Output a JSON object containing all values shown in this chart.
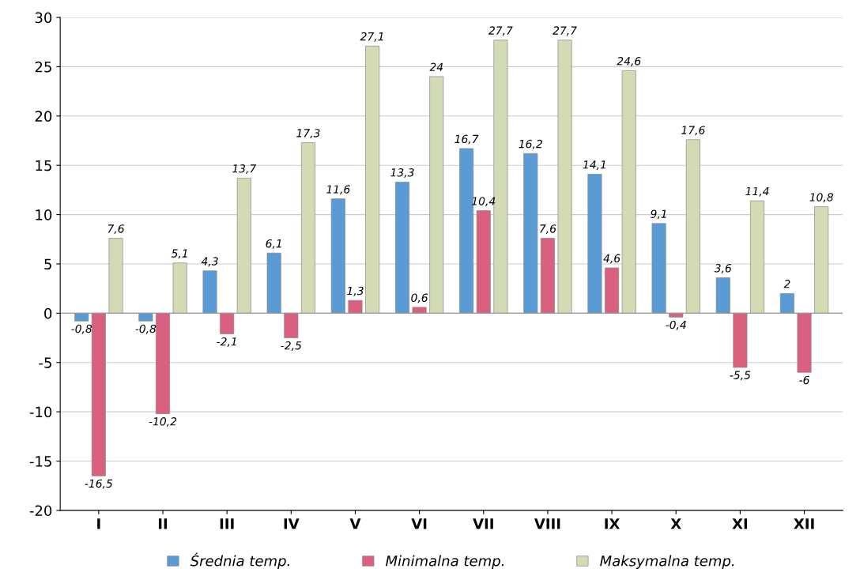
{
  "chart_data": {
    "type": "bar",
    "categories": [
      "I",
      "II",
      "III",
      "IV",
      "V",
      "VI",
      "VII",
      "VIII",
      "IX",
      "X",
      "XI",
      "XII"
    ],
    "series": [
      {
        "name": "Średnia temp.",
        "color": "#5b9bd5",
        "values": [
          -0.8,
          -0.8,
          4.3,
          6.1,
          11.6,
          13.3,
          16.7,
          16.2,
          14.1,
          9.1,
          3.6,
          2
        ],
        "value_labels": [
          "-0,8",
          "-0,8",
          "4,3",
          "6,1",
          "11,6",
          "13,3",
          "16,7",
          "16,2",
          "14,1",
          "9,1",
          "3,6",
          "2"
        ]
      },
      {
        "name": "Minimalna temp.",
        "color": "#d9607f",
        "values": [
          -16.5,
          -10.2,
          -2.1,
          -2.5,
          1.3,
          0.6,
          10.4,
          7.6,
          4.6,
          -0.4,
          -5.5,
          -6
        ],
        "value_labels": [
          "-16,5",
          "-10,2",
          "-2,1",
          "-2,5",
          "1,3",
          "0,6",
          "10,4",
          "7,6",
          "4,6",
          "-0,4",
          "-5,5",
          "-6"
        ]
      },
      {
        "name": "Maksymalna temp.",
        "color": "#d3dbb5",
        "values": [
          7.6,
          5.1,
          13.7,
          17.3,
          27.1,
          24,
          27.7,
          27.7,
          24.6,
          17.6,
          11.4,
          10.8
        ],
        "value_labels": [
          "7,6",
          "5,1",
          "13,7",
          "17,3",
          "27,1",
          "24",
          "27,7",
          "27,7",
          "24,6",
          "17,6",
          "11,4",
          "10,8"
        ]
      }
    ],
    "ylim": [
      -20,
      30
    ],
    "yticks": [
      -20,
      -15,
      -10,
      -5,
      0,
      5,
      10,
      15,
      20,
      25,
      30
    ],
    "grid": "y",
    "legend": "bottom"
  }
}
